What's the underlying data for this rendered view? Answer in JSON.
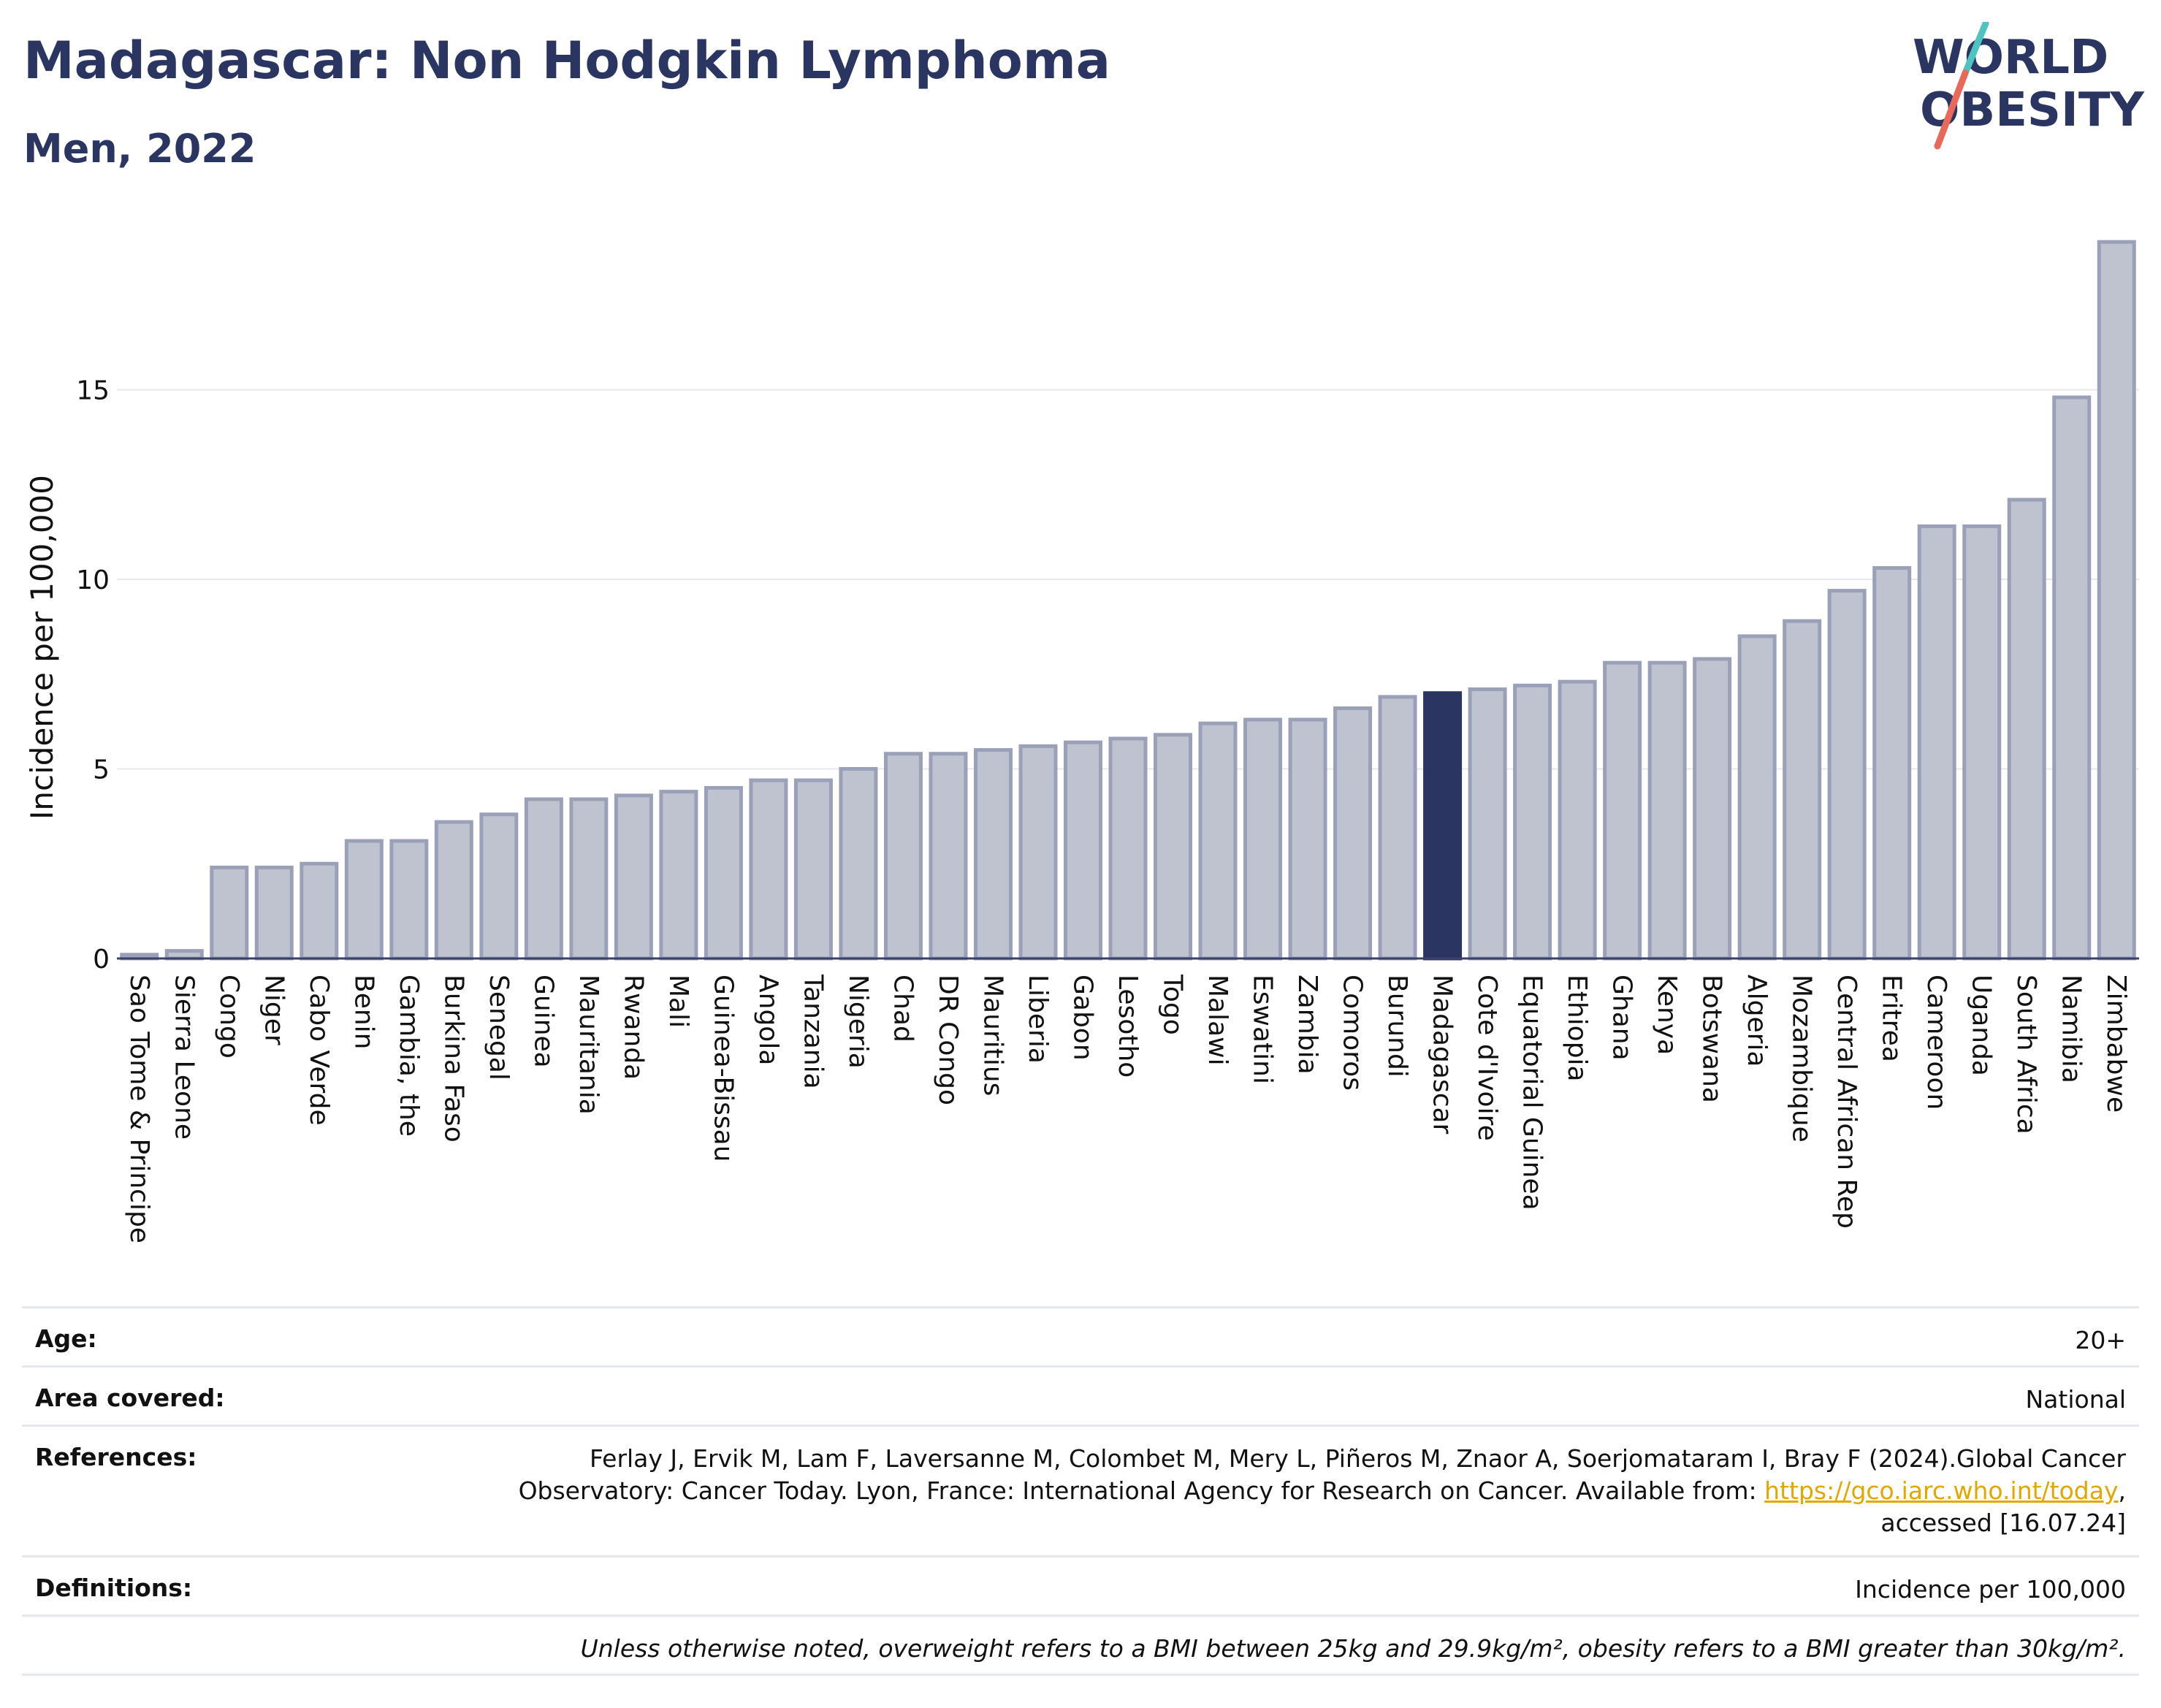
{
  "header": {
    "title": "Madagascar: Non Hodgkin Lymphoma",
    "subtitle": "Men, 2022"
  },
  "logo": {
    "line1": "WORLD",
    "line2": "OBESITY",
    "colors": {
      "text": "#2b3561",
      "slash_top": "#4fc3c0",
      "slash_bottom": "#e8685a"
    }
  },
  "chart_data": {
    "type": "bar",
    "ylabel": "Incidence per 100,000",
    "xlabel": "",
    "ylim": [
      0,
      19.5
    ],
    "yticks": [
      0,
      5,
      10,
      15
    ],
    "grid": true,
    "highlight": "Madagascar",
    "colors": {
      "bar": "#bfc3d0",
      "bar_edge": "#9aa0b8",
      "highlight": "#2b3561",
      "grid": "#e6e8ee"
    },
    "categories": [
      "Sao Tome & Principe",
      "Sierra Leone",
      "Congo",
      "Niger",
      "Cabo Verde",
      "Benin",
      "Gambia, the",
      "Burkina Faso",
      "Senegal",
      "Guinea",
      "Mauritania",
      "Rwanda",
      "Mali",
      "Guinea-Bissau",
      "Angola",
      "Tanzania",
      "Nigeria",
      "Chad",
      "DR Congo",
      "Mauritius",
      "Liberia",
      "Gabon",
      "Lesotho",
      "Togo",
      "Malawi",
      "Eswatini",
      "Zambia",
      "Comoros",
      "Burundi",
      "Madagascar",
      "Cote d'Ivoire",
      "Equatorial Guinea",
      "Ethiopia",
      "Ghana",
      "Kenya",
      "Botswana",
      "Algeria",
      "Mozambique",
      "Central African Rep",
      "Eritrea",
      "Cameroon",
      "Uganda",
      "South Africa",
      "Namibia",
      "Zimbabwe"
    ],
    "values": [
      0.1,
      0.2,
      2.4,
      2.4,
      2.5,
      3.1,
      3.1,
      3.6,
      3.8,
      4.2,
      4.2,
      4.3,
      4.4,
      4.5,
      4.7,
      4.7,
      5.0,
      5.4,
      5.4,
      5.5,
      5.6,
      5.7,
      5.8,
      5.9,
      6.2,
      6.3,
      6.3,
      6.6,
      6.9,
      7.0,
      7.1,
      7.2,
      7.3,
      7.8,
      7.8,
      7.9,
      8.5,
      8.9,
      9.7,
      10.3,
      11.4,
      11.4,
      12.1,
      14.8,
      18.9
    ]
  },
  "meta": {
    "age_label": "Age:",
    "age_value": "20+",
    "area_label": "Area covered:",
    "area_value": "National",
    "references_label": "References:",
    "references_line1": "Ferlay J, Ervik M, Lam F, Laversanne M, Colombet M, Mery L, Piñeros M, Znaor A, Soerjomataram I, Bray F (2024).Global Cancer",
    "references_line2_pre": "Observatory: Cancer Today. Lyon, France: International Agency for Research on Cancer. Available from: ",
    "references_link": "https://gco.iarc.who.int/today",
    "references_line2_post": ",",
    "references_line3": "accessed [16.07.24]",
    "definitions_label": "Definitions:",
    "definitions_value": "Incidence per 100,000",
    "note": "Unless otherwise noted, overweight refers to a BMI between 25kg and 29.9kg/m², obesity refers to a BMI greater than 30kg/m²."
  }
}
